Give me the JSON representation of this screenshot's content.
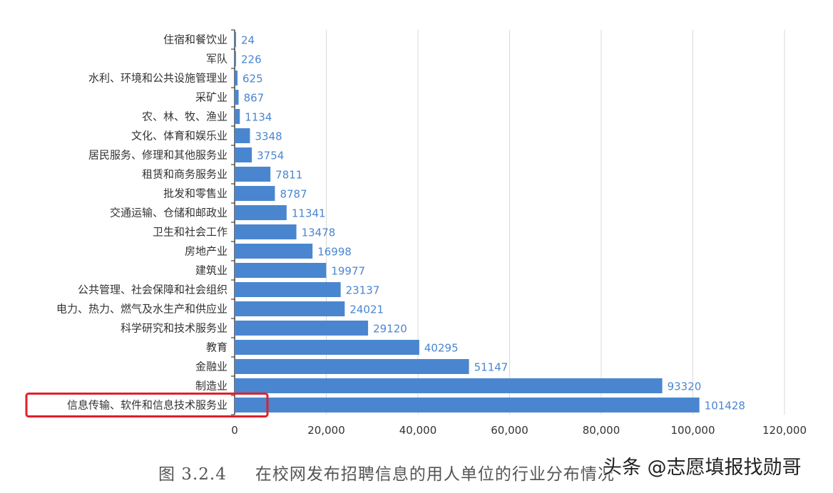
{
  "chart_data": {
    "type": "bar",
    "orientation": "horizontal",
    "categories": [
      "住宿和餐饮业",
      "军队",
      "水利、环境和公共设施管理业",
      "采矿业",
      "农、林、牧、渔业",
      "文化、体育和娱乐业",
      "居民服务、修理和其他服务业",
      "租赁和商务服务业",
      "批发和零售业",
      "交通运输、仓储和邮政业",
      "卫生和社会工作",
      "房地产业",
      "建筑业",
      "公共管理、社会保障和社会组织",
      "电力、热力、燃气及水生产和供应业",
      "科学研究和技术服务业",
      "教育",
      "金融业",
      "制造业",
      "信息传输、软件和信息技术服务业"
    ],
    "values": [
      24,
      226,
      625,
      867,
      1134,
      3348,
      3754,
      7811,
      8787,
      11341,
      13478,
      16998,
      19977,
      23137,
      24021,
      29120,
      40295,
      51147,
      93320,
      101428
    ],
    "value_labels": [
      "24",
      "226",
      "625",
      "867",
      "1134",
      "3348",
      "3754",
      "7811",
      "8787",
      "11341",
      "13478",
      "16998",
      "19977",
      "23137",
      "24021",
      "29120",
      "40295",
      "51147",
      "93320",
      "101428"
    ],
    "xlim": [
      0,
      120000
    ],
    "xticks": [
      0,
      20000,
      40000,
      60000,
      80000,
      100000,
      120000
    ],
    "xtick_labels": [
      "0",
      "20,000",
      "40,000",
      "60,000",
      "80,000",
      "100,000",
      "120,000"
    ],
    "grid": "vertical",
    "highlighted_category": "信息传输、软件和信息技术服务业",
    "colors": {
      "bar": "#4a86cf",
      "value_label": "#4a86cf",
      "grid": "#d9d9d9",
      "highlight_box": "#e0202a",
      "axis_text": "#333333"
    }
  },
  "caption": {
    "number": "图 3.2.4",
    "text": "在校网发布招聘信息的用人单位的行业分布情况"
  },
  "watermark": "头条 @志愿填报找勋哥"
}
